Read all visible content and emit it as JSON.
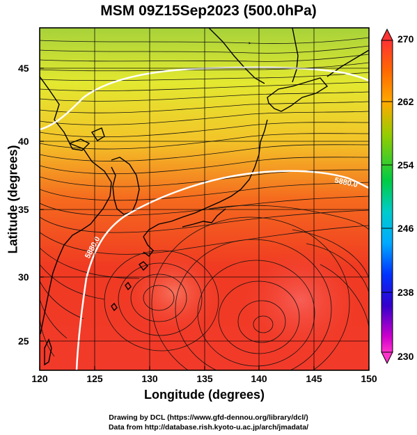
{
  "title": "MSM 09Z15Sep2023 (500.0hPa)",
  "xaxis": {
    "label": "Longitude (degrees)",
    "ticks": [
      "120",
      "125",
      "130",
      "135",
      "140",
      "145",
      "150"
    ],
    "range": [
      120,
      150
    ]
  },
  "yaxis": {
    "label": "Latitude  (degrees)",
    "ticks": [
      "25",
      "30",
      "35",
      "40",
      "45"
    ],
    "range": [
      22.4,
      47.6
    ]
  },
  "colorbar": {
    "ticks": [
      "270",
      "262",
      "254",
      "246",
      "238",
      "230"
    ],
    "range": [
      230,
      270
    ],
    "colors": [
      "#ff33cc",
      "#cc00cc",
      "#3300cc",
      "#0033ff",
      "#00aaff",
      "#00cccc",
      "#00cc66",
      "#33cc00",
      "#99cc00",
      "#ffcc00",
      "#ff9900",
      "#ff4400",
      "#ff3333"
    ]
  },
  "contours": [
    {
      "label": "5880.0",
      "color": "#ffffff"
    },
    {
      "label": "5580.0",
      "color": "#ffffff"
    }
  ],
  "map_extent": "120E-150E, 22.4N-47.6N",
  "field": "temperature (K) with wind streamlines at 500 hPa",
  "credits": {
    "line1": "Drawing by DCL (https://www.gfd-dennou.org/library/dcl/)",
    "line2": "Data from http://database.rish.kyoto-u.ac.jp/arch/jmadata/"
  }
}
